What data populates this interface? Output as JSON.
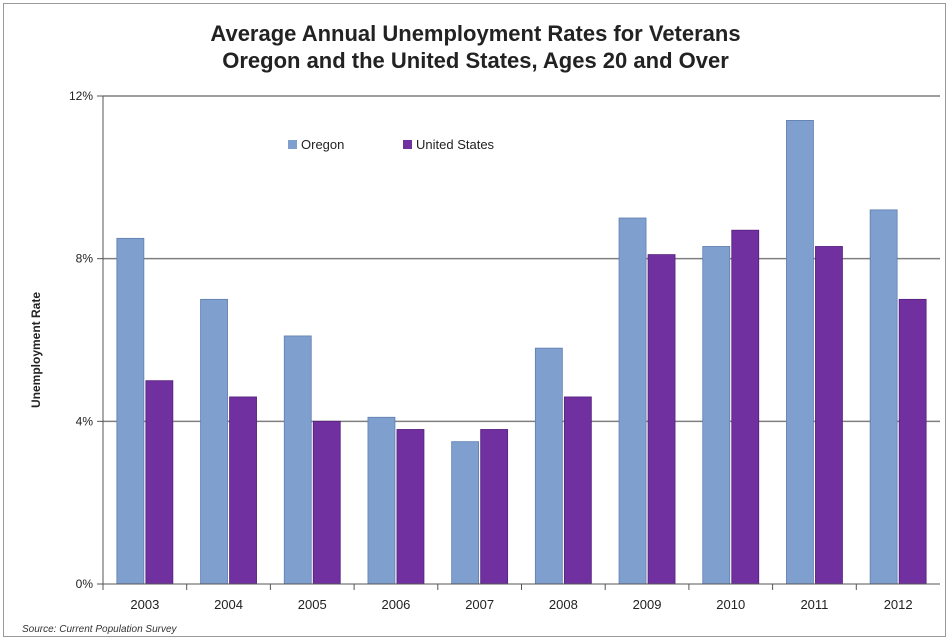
{
  "chart_data": {
    "type": "bar",
    "title": "Average Annual Unemployment Rates for Veterans",
    "subtitle": "Oregon and the United States, Ages 20 and Over",
    "xlabel": "",
    "ylabel": "Unemployment Rate",
    "categories": [
      "2003",
      "2004",
      "2005",
      "2006",
      "2007",
      "2008",
      "2009",
      "2010",
      "2011",
      "2012"
    ],
    "series": [
      {
        "name": "Oregon",
        "color": "#7f9fcf",
        "values": [
          8.5,
          7.0,
          6.1,
          4.1,
          3.5,
          5.8,
          9.0,
          8.3,
          11.4,
          9.2
        ]
      },
      {
        "name": "United States",
        "color": "#7030a0",
        "values": [
          5.0,
          4.6,
          4.0,
          3.8,
          3.8,
          4.6,
          8.1,
          8.7,
          8.3,
          7.0
        ]
      }
    ],
    "ylim": [
      0,
      12
    ],
    "yticks": [
      0,
      4,
      8,
      12
    ],
    "ytick_labels": [
      "0%",
      "4%",
      "8%",
      "12%"
    ],
    "grid": true,
    "legend_position": "top-left",
    "source": "Source: Current Population Survey"
  }
}
